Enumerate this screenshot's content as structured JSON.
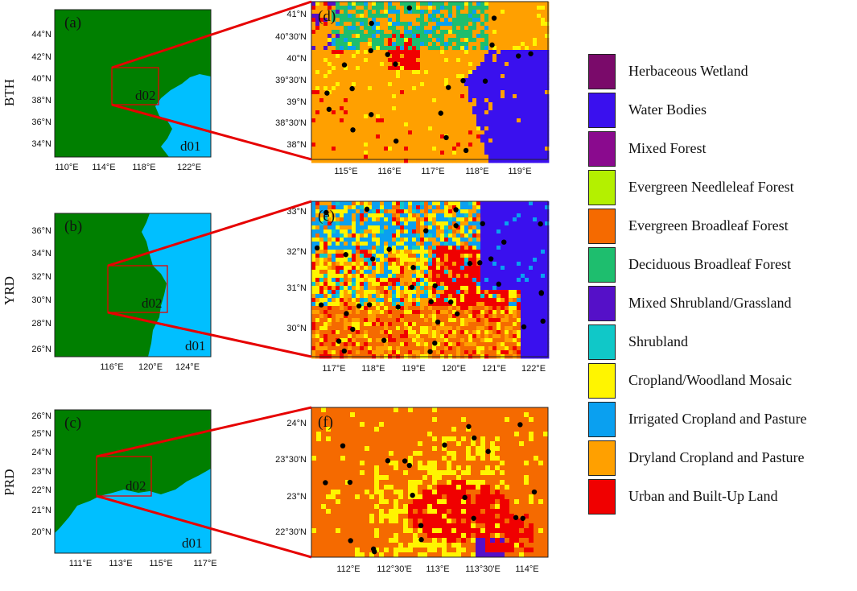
{
  "rows": [
    {
      "region": "BTH",
      "panel_label_domain": "(a)",
      "panel_label_zoom": "(d)",
      "inner_domain": "d02",
      "outer_domain": "d01",
      "outer_lat_ticks": [
        "44°N",
        "42°N",
        "40°N",
        "38°N",
        "36°N",
        "34°N"
      ],
      "outer_lon_ticks": [
        "110°E",
        "114°E",
        "118°E",
        "122°E"
      ],
      "zoom_lat_ticks": [
        "41°N",
        "40°30'N",
        "40°N",
        "39°30'N",
        "39°N",
        "38°30'N",
        "38°N"
      ],
      "zoom_lon_ticks": [
        "115°E",
        "116°E",
        "117°E",
        "118°E",
        "119°E"
      ]
    },
    {
      "region": "YRD",
      "panel_label_domain": "(b)",
      "panel_label_zoom": "(e)",
      "inner_domain": "d02",
      "outer_domain": "d01",
      "outer_lat_ticks": [
        "36°N",
        "34°N",
        "32°N",
        "30°N",
        "28°N",
        "26°N"
      ],
      "outer_lon_ticks": [
        "116°E",
        "120°E",
        "124°E"
      ],
      "zoom_lat_ticks": [
        "33°N",
        "32°N",
        "31°N",
        "30°N"
      ],
      "zoom_lon_ticks": [
        "117°E",
        "118°E",
        "119°E",
        "120°E",
        "121°E",
        "122°E"
      ]
    },
    {
      "region": "PRD",
      "panel_label_domain": "(c)",
      "panel_label_zoom": "(f)",
      "inner_domain": "d02",
      "outer_domain": "d01",
      "outer_lat_ticks": [
        "26°N",
        "25°N",
        "24°N",
        "23°N",
        "22°N",
        "21°N",
        "20°N"
      ],
      "outer_lon_ticks": [
        "111°E",
        "113°E",
        "115°E",
        "117°E"
      ],
      "zoom_lat_ticks": [
        "24°N",
        "23°30'N",
        "23°N",
        "22°30'N"
      ],
      "zoom_lon_ticks": [
        "112°E",
        "112°30'E",
        "113°E",
        "113°30'E",
        "114°E"
      ]
    }
  ],
  "colors": {
    "land": "#007f00",
    "sea": "#00bfff",
    "box": "#e60000",
    "connector": "#e60000"
  },
  "legend": [
    {
      "label": "Herbaceous Wetland",
      "color": "#7a0a6a"
    },
    {
      "label": "Water Bodies",
      "color": "#3a10ee"
    },
    {
      "label": "Mixed Forest",
      "color": "#8a0a8e"
    },
    {
      "label": "Evergreen Needleleaf Forest",
      "color": "#b4f000"
    },
    {
      "label": "Evergreen Broadleaf Forest",
      "color": "#f56a00"
    },
    {
      "label": "Deciduous Broadleaf Forest",
      "color": "#1ebe6e"
    },
    {
      "label": "Mixed Shrubland/Grassland",
      "color": "#5510c8"
    },
    {
      "label": "Shrubland",
      "color": "#10c8c8"
    },
    {
      "label": "Cropland/Woodland Mosaic",
      "color": "#fff500"
    },
    {
      "label": "Irrigated Cropland and Pasture",
      "color": "#0aa0f0"
    },
    {
      "label": "Dryland Cropland and Pasture",
      "color": "#ffa000"
    },
    {
      "label": "Urban and Built-Up Land",
      "color": "#f00000"
    }
  ]
}
